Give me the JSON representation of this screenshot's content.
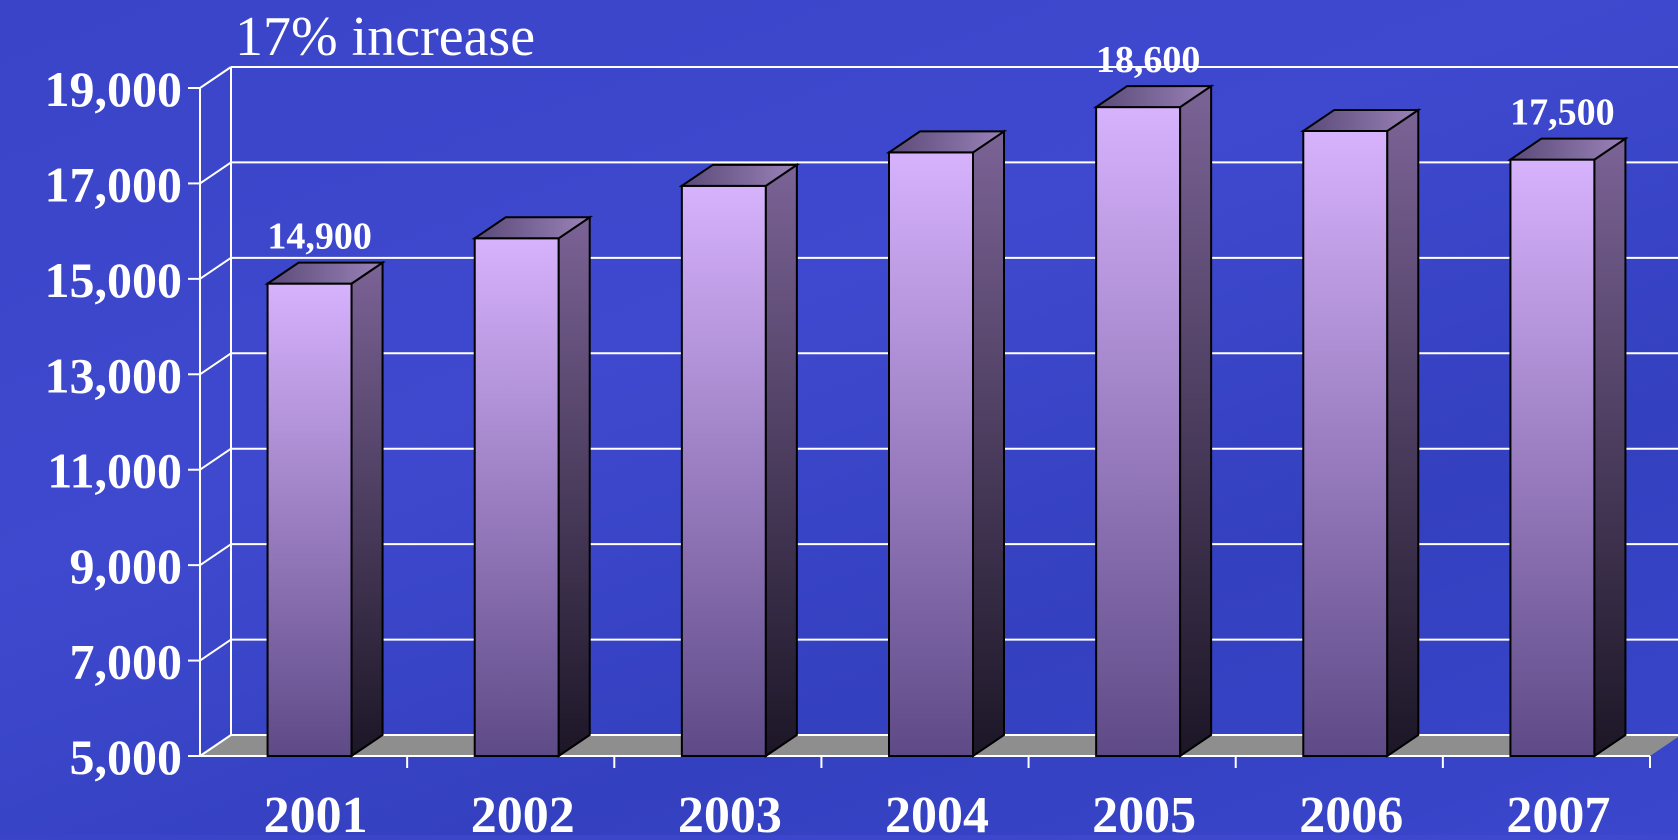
{
  "chart_data": {
    "type": "bar",
    "title": "17% increase",
    "categories": [
      "2001",
      "2002",
      "2003",
      "2004",
      "2005",
      "2006",
      "2007"
    ],
    "values": [
      14900,
      15850,
      16950,
      17650,
      18600,
      18100,
      17500
    ],
    "data_labels": [
      "14,900",
      "",
      "",
      "",
      "18,600",
      "",
      "17,500"
    ],
    "ylim": [
      5000,
      19000
    ],
    "yticks": [
      5000,
      7000,
      9000,
      11000,
      13000,
      15000,
      17000,
      19000
    ],
    "ytick_labels": [
      "5,000",
      "7,000",
      "9,000",
      "11,000",
      "13,000",
      "15,000",
      "17,000",
      "19,000"
    ],
    "xlabel": "",
    "ylabel": "",
    "grid": true,
    "style": "3d-column",
    "colors": {
      "background": "#3a44c8",
      "bar_top": "#d7b2fd",
      "bar_bottom": "#5e4a86",
      "bar_side_top": "#7b6396",
      "bar_side_bottom": "#1c1626",
      "floor": "#8e8e8e",
      "grid": "#ffffff",
      "text": "#ffffff"
    }
  }
}
